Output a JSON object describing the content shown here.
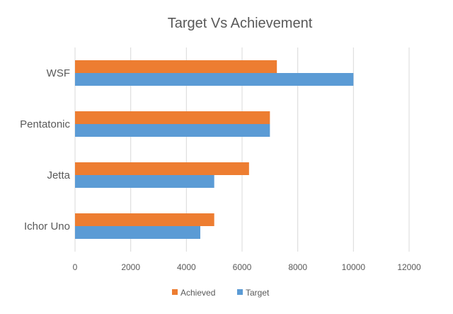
{
  "chart_data": {
    "type": "bar",
    "orientation": "horizontal",
    "title": "Target Vs Achievement",
    "xlabel": "",
    "ylabel": "",
    "categories": [
      "WSF",
      "Pentatonic",
      "Jetta",
      "Ichor Uno"
    ],
    "series": [
      {
        "name": "Achieved",
        "color": "#ED7D31",
        "values": [
          7250,
          7000,
          6250,
          5000
        ]
      },
      {
        "name": "Target",
        "color": "#5B9BD5",
        "values": [
          10000,
          7000,
          5000,
          4500
        ]
      }
    ],
    "xlim": [
      0,
      12000
    ],
    "xticks": [
      0,
      2000,
      4000,
      6000,
      8000,
      10000,
      12000
    ],
    "xtick_labels": [
      "0",
      "2000",
      "4000",
      "6000",
      "8000",
      "10000",
      "12000"
    ],
    "grid": "vertical",
    "gridline_color": "#D9D9D9",
    "legend": "bottom"
  }
}
